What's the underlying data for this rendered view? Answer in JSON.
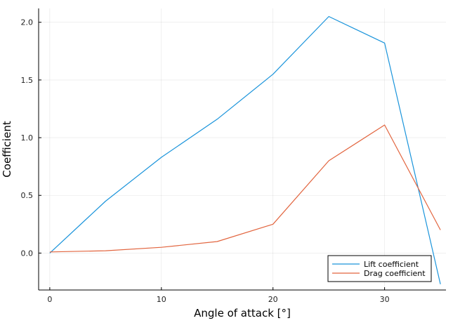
{
  "chart_data": {
    "type": "line",
    "xlabel": "Angle of attack [°]",
    "ylabel": "Coefficient",
    "xlim": [
      -1,
      35.5
    ],
    "ylim": [
      -0.32,
      2.12
    ],
    "xticks": [
      0,
      10,
      20,
      30
    ],
    "yticks": [
      0.0,
      0.5,
      1.0,
      1.5,
      2.0
    ],
    "xtick_labels": [
      "0",
      "10",
      "20",
      "30"
    ],
    "ytick_labels": [
      "0.0",
      "0.5",
      "1.0",
      "1.5",
      "2.0"
    ],
    "grid": true,
    "legend_position": "bottom-right",
    "x": [
      0,
      5,
      10,
      15,
      20,
      25,
      30,
      35
    ],
    "series": [
      {
        "name": "Lift coefficient",
        "color": "#1a94db",
        "values": [
          0.0,
          0.45,
          0.83,
          1.16,
          1.55,
          2.05,
          1.82,
          -0.27
        ]
      },
      {
        "name": "Drag coefficient",
        "color": "#e2653f",
        "values": [
          0.01,
          0.02,
          0.05,
          0.1,
          0.25,
          0.8,
          1.11,
          0.2
        ]
      }
    ]
  }
}
